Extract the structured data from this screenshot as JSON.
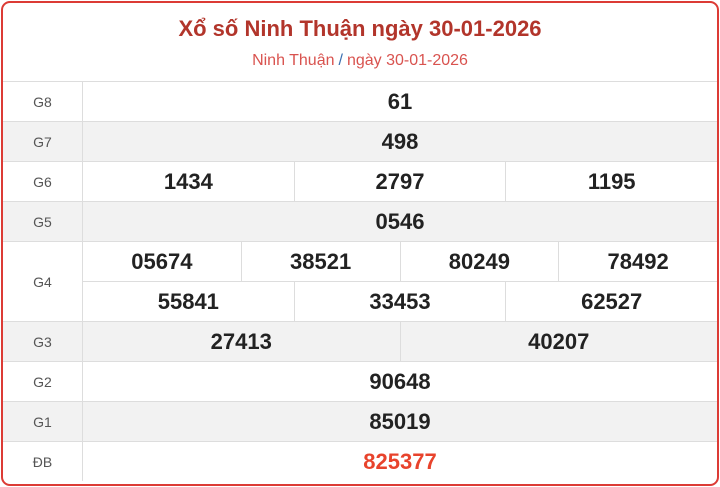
{
  "header": {
    "title": "Xổ số Ninh Thuận ngày 30-01-2026",
    "breadcrumb": {
      "province": "Ninh Thuận",
      "separator": "/",
      "date": "ngày 30-01-2026"
    }
  },
  "prizes": {
    "g8": {
      "label": "G8",
      "numbers": [
        "61"
      ]
    },
    "g7": {
      "label": "G7",
      "numbers": [
        "498"
      ]
    },
    "g6": {
      "label": "G6",
      "numbers": [
        "1434",
        "2797",
        "1195"
      ]
    },
    "g5": {
      "label": "G5",
      "numbers": [
        "0546"
      ]
    },
    "g4": {
      "label": "G4",
      "numbers": [
        "05674",
        "38521",
        "80249",
        "78492",
        "55841",
        "33453",
        "62527"
      ]
    },
    "g3": {
      "label": "G3",
      "numbers": [
        "27413",
        "40207"
      ]
    },
    "g2": {
      "label": "G2",
      "numbers": [
        "90648"
      ]
    },
    "g1": {
      "label": "G1",
      "numbers": [
        "85019"
      ]
    },
    "db": {
      "label": "ĐB",
      "numbers": [
        "825377"
      ]
    }
  },
  "colors": {
    "border": "#dc3b35",
    "title": "#b2352b",
    "special": "#e8432c"
  }
}
